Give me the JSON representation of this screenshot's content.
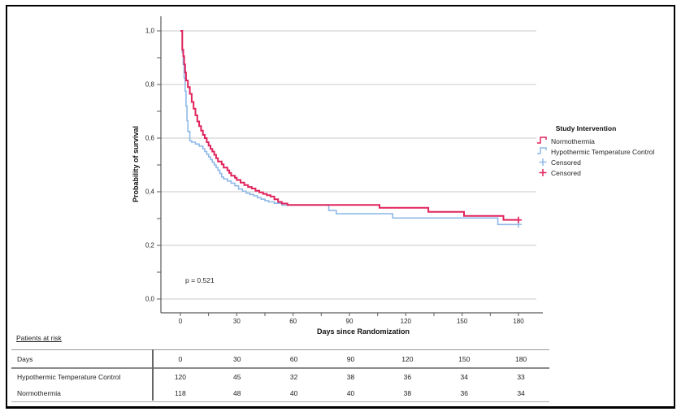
{
  "chart_data": {
    "type": "line",
    "subtype": "kaplan_meier_step",
    "title": "",
    "xlabel": "Days since Randomization",
    "ylabel": "Probability of survival",
    "annotation": "p = 0.521",
    "xlim": [
      0,
      180
    ],
    "ylim": [
      0,
      1
    ],
    "x_ticks": [
      0,
      30,
      60,
      90,
      120,
      150,
      180
    ],
    "x_minor_tick_step": 15,
    "y_tick_labels": [
      "0,0",
      "0,2",
      "0,4",
      "0,6",
      "0,8",
      "1,0"
    ],
    "y_minor_tick_step": 0.1,
    "grid": "horizontal",
    "legend_position": "right",
    "colors": {
      "normothermia": "#e0235c",
      "hypothermic": "#8fb9e8",
      "grid": "#c8c8c8",
      "axis": "#5a5a5a",
      "text": "#262626"
    },
    "legend": {
      "title": "Study Intervention",
      "entries": [
        {
          "label": "Normothermia",
          "symbol": "step",
          "color_key": "normothermia"
        },
        {
          "label": "Hypothermic Temperature Control",
          "symbol": "step",
          "color_key": "hypothermic"
        },
        {
          "label": "Censored",
          "symbol": "plus",
          "color_key": "hypothermic"
        },
        {
          "label": "Censored",
          "symbol": "plus",
          "color_key": "normothermia"
        }
      ]
    },
    "series": [
      {
        "name": "Normothermia",
        "color_key": "normothermia",
        "points": [
          [
            0,
            1.0
          ],
          [
            1,
            0.93
          ],
          [
            1.5,
            0.905
          ],
          [
            2,
            0.875
          ],
          [
            2.5,
            0.845
          ],
          [
            3,
            0.815
          ],
          [
            4,
            0.79
          ],
          [
            5,
            0.765
          ],
          [
            6,
            0.735
          ],
          [
            7,
            0.71
          ],
          [
            8,
            0.685
          ],
          [
            9,
            0.662
          ],
          [
            10,
            0.645
          ],
          [
            11,
            0.628
          ],
          [
            12,
            0.612
          ],
          [
            13,
            0.6
          ],
          [
            14,
            0.585
          ],
          [
            15,
            0.572
          ],
          [
            16,
            0.56
          ],
          [
            17,
            0.55
          ],
          [
            18,
            0.538
          ],
          [
            19,
            0.525
          ],
          [
            20,
            0.513
          ],
          [
            22,
            0.502
          ],
          [
            23,
            0.49
          ],
          [
            25,
            0.48
          ],
          [
            26,
            0.47
          ],
          [
            27,
            0.46
          ],
          [
            29,
            0.452
          ],
          [
            30,
            0.444
          ],
          [
            32,
            0.434
          ],
          [
            34,
            0.425
          ],
          [
            36,
            0.418
          ],
          [
            38,
            0.412
          ],
          [
            40,
            0.404
          ],
          [
            42,
            0.398
          ],
          [
            44,
            0.392
          ],
          [
            46,
            0.387
          ],
          [
            48,
            0.382
          ],
          [
            50,
            0.372
          ],
          [
            52,
            0.362
          ],
          [
            54,
            0.356
          ],
          [
            57,
            0.351
          ],
          [
            106,
            0.34
          ],
          [
            132,
            0.325
          ],
          [
            151,
            0.31
          ],
          [
            172,
            0.295
          ]
        ],
        "censored": [
          [
            180,
            0.295
          ]
        ]
      },
      {
        "name": "Hypothermic Temperature Control",
        "color_key": "hypothermic",
        "points": [
          [
            0,
            1.0
          ],
          [
            1,
            0.92
          ],
          [
            1.5,
            0.875
          ],
          [
            2,
            0.825
          ],
          [
            2.5,
            0.775
          ],
          [
            3,
            0.72
          ],
          [
            3.5,
            0.665
          ],
          [
            4,
            0.625
          ],
          [
            5,
            0.59
          ],
          [
            6,
            0.585
          ],
          [
            8,
            0.578
          ],
          [
            10,
            0.57
          ],
          [
            12,
            0.56
          ],
          [
            13,
            0.55
          ],
          [
            14,
            0.54
          ],
          [
            15,
            0.53
          ],
          [
            16,
            0.52
          ],
          [
            17,
            0.51
          ],
          [
            18,
            0.5
          ],
          [
            19,
            0.49
          ],
          [
            20,
            0.48
          ],
          [
            21,
            0.468
          ],
          [
            22,
            0.455
          ],
          [
            23,
            0.448
          ],
          [
            25,
            0.44
          ],
          [
            27,
            0.432
          ],
          [
            29,
            0.422
          ],
          [
            31,
            0.41
          ],
          [
            33,
            0.402
          ],
          [
            35,
            0.395
          ],
          [
            37,
            0.39
          ],
          [
            39,
            0.385
          ],
          [
            41,
            0.378
          ],
          [
            43,
            0.372
          ],
          [
            45,
            0.367
          ],
          [
            47,
            0.362
          ],
          [
            50,
            0.357
          ],
          [
            54,
            0.35
          ],
          [
            79,
            0.33
          ],
          [
            83,
            0.318
          ],
          [
            113,
            0.302
          ],
          [
            169,
            0.278
          ]
        ],
        "censored": [
          [
            180,
            0.278
          ]
        ]
      }
    ]
  },
  "risk_table": {
    "caption": "Patients at risk",
    "header_label": "Days",
    "columns": [
      "0",
      "30",
      "60",
      "90",
      "120",
      "150",
      "180"
    ],
    "rows": [
      {
        "label": "Hypothermic Temperature Control",
        "values": [
          "120",
          "45",
          "32",
          "38",
          "36",
          "34",
          "33"
        ]
      },
      {
        "label": "Normothermia",
        "values": [
          "118",
          "48",
          "40",
          "40",
          "38",
          "36",
          "34"
        ]
      }
    ]
  }
}
